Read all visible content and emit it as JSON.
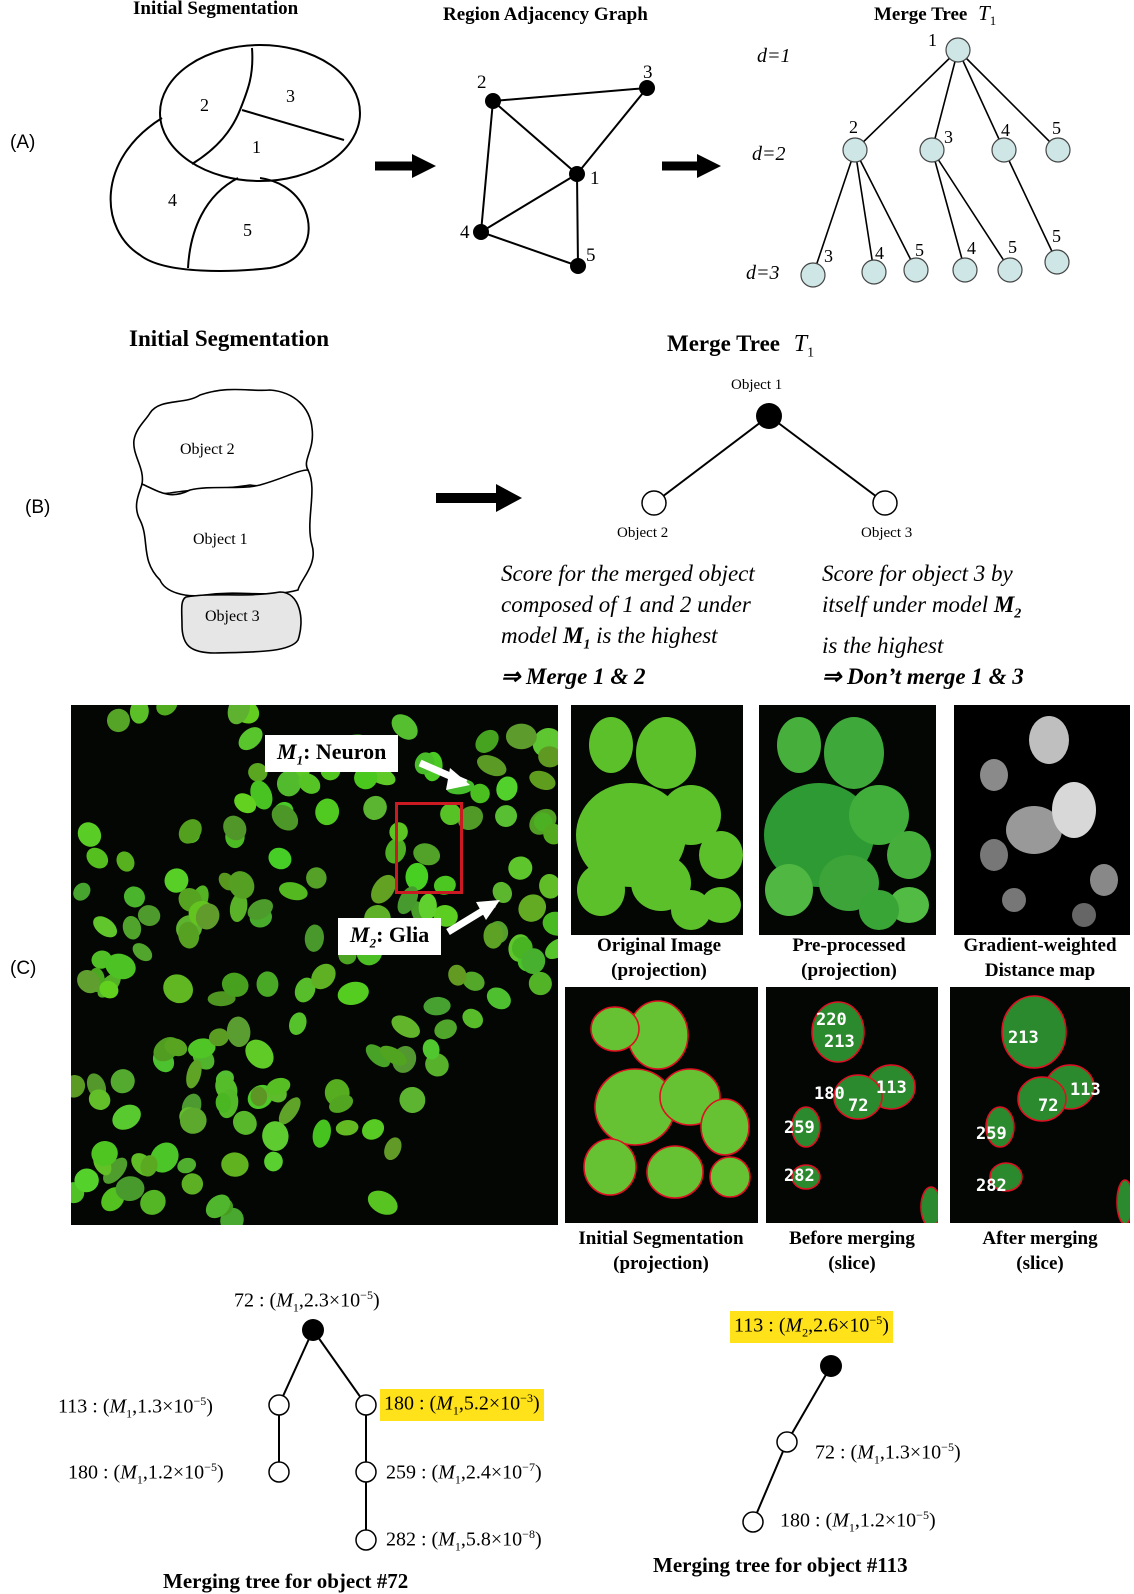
{
  "panel_a": {
    "label": "(A)",
    "titles": {
      "initial_segmentation": "Initial Segmentation",
      "rag": "Region Adjacency Graph",
      "merge_tree": "Merge Tree",
      "tree_symbol": "T",
      "tree_subscript": "1"
    },
    "regions": [
      "2",
      "3",
      "1",
      "4",
      "5"
    ],
    "graph_nodes": [
      "2",
      "3",
      "1",
      "4",
      "5"
    ],
    "depths": [
      "d=1",
      "d=2",
      "d=3"
    ],
    "tree_nodes": [
      "1",
      "2",
      "3",
      "4",
      "5",
      "3",
      "4",
      "5",
      "4",
      "5",
      "5"
    ]
  },
  "panel_b": {
    "label": "(B)",
    "title_left": "Initial Segmentation",
    "title_right": "Merge Tree",
    "tree_symbol": "T",
    "tree_subscript": "1",
    "objects": [
      "Object 2",
      "Object 1",
      "Object 3"
    ],
    "tree_root": "Object 1",
    "tree_left": "Object 2",
    "tree_right": "Object 3",
    "text_left": [
      "Score for the merged object",
      "composed of  1 and 2 under",
      "model ",
      "M",
      "1",
      " is the highest"
    ],
    "conclusion_left": "⇒ Merge 1 & 2",
    "text_right": [
      "Score for object 3 by",
      "itself under model ",
      "M",
      "2",
      "is the highest"
    ],
    "conclusion_right": "⇒ Don’t merge 1 & 3"
  },
  "panel_c": {
    "label": "(C)",
    "callout_neuron": {
      "m": "M",
      "sub": "1",
      "text": ": Neuron"
    },
    "callout_glia": {
      "m": "M",
      "sub": "2",
      "text": ": Glia"
    },
    "captions": [
      [
        "Original Image",
        "(projection)"
      ],
      [
        "Pre-processed",
        "(projection)"
      ],
      [
        "Gradient-weighted",
        "Distance map"
      ],
      [
        "Initial Segmentation",
        "(projection)"
      ],
      [
        "Before merging",
        "(slice)"
      ],
      [
        "After merging",
        "(slice)"
      ]
    ],
    "before_labels": [
      "220",
      "213",
      "180",
      "113",
      "72",
      "259",
      "282"
    ],
    "after_labels": [
      "213",
      "72",
      "113",
      "259",
      "282"
    ]
  },
  "trees": {
    "tree72": {
      "caption": "Merging tree for object #72",
      "root": {
        "id": "72",
        "model": "M",
        "sub": "1",
        "score": "2.3×10",
        "exp": "−5"
      },
      "left1": {
        "id": "113",
        "model": "M",
        "sub": "1",
        "score": "1.3×10",
        "exp": "−5"
      },
      "left2": {
        "id": "180",
        "model": "M",
        "sub": "1",
        "score": "1.2×10",
        "exp": "−5"
      },
      "right1": {
        "id": "180",
        "model": "M",
        "sub": "1",
        "score": "5.2×10",
        "exp": "−3"
      },
      "right2": {
        "id": "259",
        "model": "M",
        "sub": "1",
        "score": "2.4×10",
        "exp": "−7"
      },
      "right3": {
        "id": "282",
        "model": "M",
        "sub": "1",
        "score": "5.8×10",
        "exp": "−8"
      }
    },
    "tree113": {
      "caption": "Merging tree for object #113",
      "root": {
        "id": "113",
        "model": "M",
        "sub": "2",
        "score": "2.6×10",
        "exp": "−5"
      },
      "mid": {
        "id": "72",
        "model": "M",
        "sub": "1",
        "score": "1.3×10",
        "exp": "−5"
      },
      "leaf": {
        "id": "180",
        "model": "M",
        "sub": "1",
        "score": "1.2×10",
        "exp": "−5"
      }
    }
  },
  "colors": {
    "highlight": "#ffe21a",
    "tree_node_fill": "#cfe6e6",
    "cell_green": "#6cc42a",
    "seg_red": "#dd1122",
    "background_dark": "#030603"
  }
}
